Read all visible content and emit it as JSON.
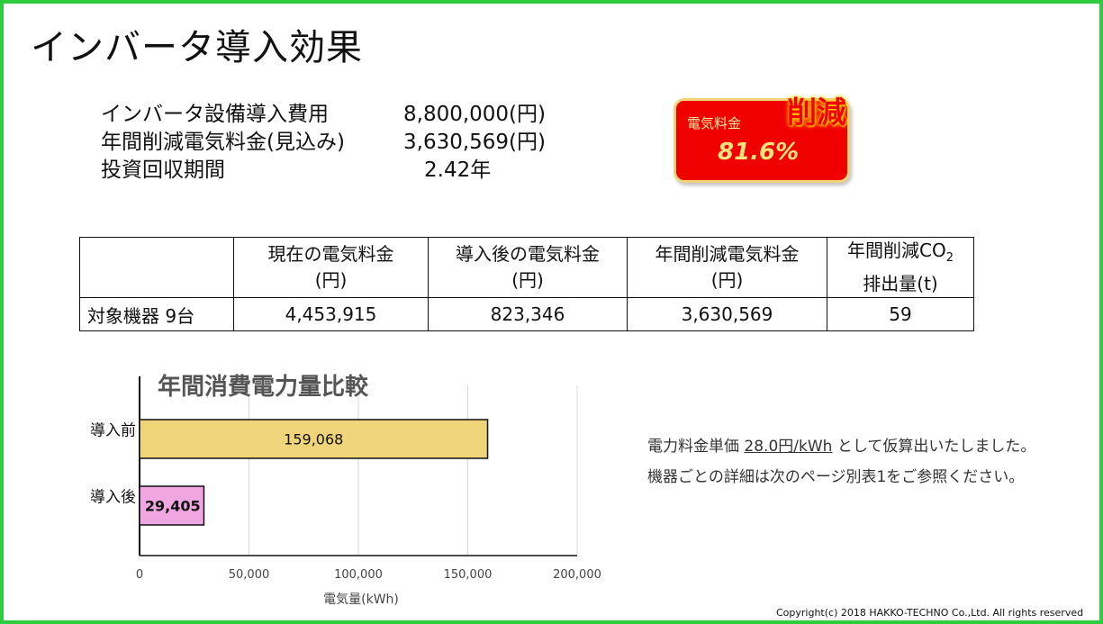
{
  "title": "インバータ導入効果",
  "summary": [
    {
      "label": "インバータ設備導入費用",
      "value": "8,800,000(円)"
    },
    {
      "label": "年間削減電気料金(見込み)",
      "value": "3,630,569(円)"
    },
    {
      "label": "投資回収期間",
      "value": "2.42年"
    }
  ],
  "badge": {
    "label": "電気料金",
    "value": "81.6%",
    "tag": "削減"
  },
  "table": {
    "headers": [
      {
        "line1": "",
        "line2": ""
      },
      {
        "line1": "現在の電気料金",
        "line2": "(円)"
      },
      {
        "line1": "導入後の電気料金",
        "line2": "(円)"
      },
      {
        "line1": "年間削減電気料金",
        "line2": "(円)"
      },
      {
        "line1": "年間削減CO",
        "sub": "2",
        "line2": "排出量(t)"
      }
    ],
    "row": [
      "対象機器 9台",
      "4,453,915",
      "823,346",
      "3,630,569",
      "59"
    ]
  },
  "chart_data": {
    "type": "bar",
    "orientation": "horizontal",
    "title": "年間消費電力量比較",
    "xlabel": "電気量(kWh)",
    "categories": [
      "導入前",
      "導入後"
    ],
    "values": [
      159068,
      29405
    ],
    "data_labels": [
      "159,068",
      "29,405"
    ],
    "colors": [
      "#f0d47a",
      "#f0a6e0"
    ],
    "xlim": [
      0,
      200000
    ],
    "xticks": [
      0,
      50000,
      100000,
      150000,
      200000
    ],
    "xtick_labels": [
      "0",
      "50,000",
      "100,000",
      "150,000",
      "200,000"
    ],
    "grid": true
  },
  "note": {
    "line1_prefix": "電力料金単価 ",
    "line1_rate": "28.0円/kWh",
    "line1_suffix": " として仮算出いたしました。",
    "line2": "機器ごとの詳細は次のページ別表1をご参照ください。"
  },
  "copyright": "Copyright(c) 2018 HAKKO-TECHNO Co.,Ltd. All rights reserved"
}
